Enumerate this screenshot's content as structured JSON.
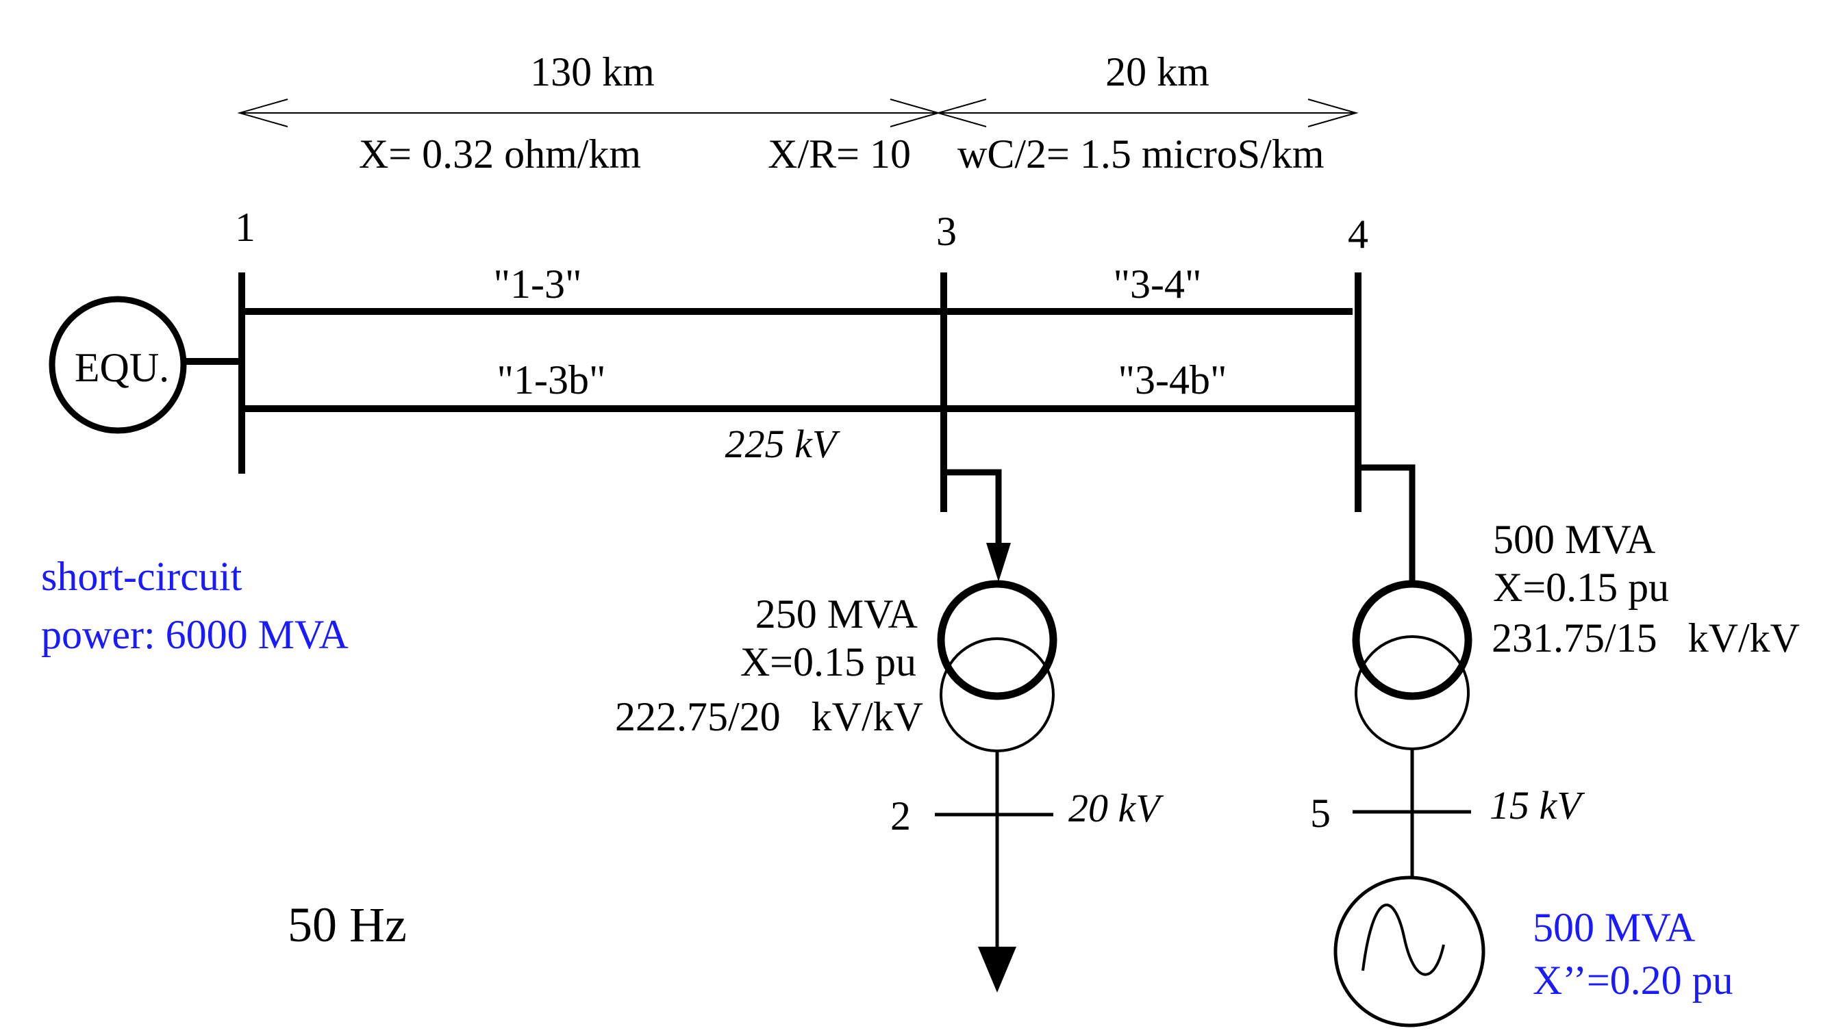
{
  "dimensions": {
    "line_13_length": "130 km",
    "line_34_length": "20 km",
    "reactance": "X= 0.32 ohm/km",
    "xr_ratio": "X/R= 10",
    "capacitance": "wC/2= 1.5 microS/km"
  },
  "buses": {
    "b1": "1",
    "b2": "2",
    "b3": "3",
    "b4": "4",
    "b5": "5"
  },
  "lines": {
    "l13": "\"1-3\"",
    "l13b": "\"1-3b\"",
    "l34": "\"3-4\"",
    "l34b": "\"3-4b\""
  },
  "voltages": {
    "hv": "225 kV",
    "bus2": "20 kV",
    "bus5": "15 kV"
  },
  "equivalent": {
    "label": "EQU.",
    "sc_line1": "short-circuit",
    "sc_line2": "power: 6000 MVA"
  },
  "transformer_1": {
    "rating": "250 MVA",
    "reactance": "X=0.15 pu",
    "ratio": "222.75/20   kV/kV"
  },
  "transformer_2": {
    "rating": "500 MVA",
    "reactance": "X=0.15 pu",
    "ratio": "231.75/15   kV/kV"
  },
  "generator": {
    "rating": "500 MVA",
    "reactance": "X’’=0.20 pu"
  },
  "frequency": "50 Hz",
  "colors": {
    "annotation_blue": "#1a1aff",
    "line_black": "#000000"
  }
}
